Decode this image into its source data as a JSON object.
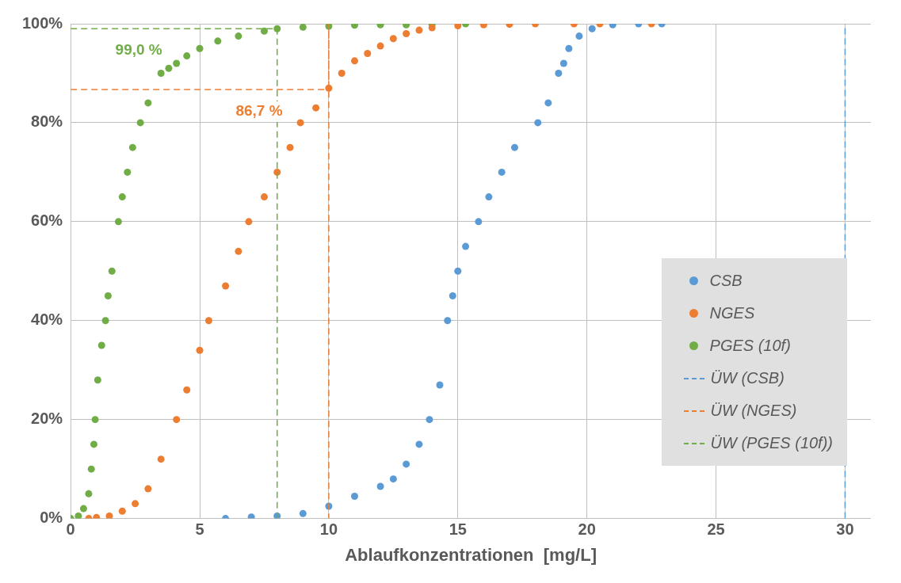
{
  "chart_data": {
    "type": "scatter",
    "xlabel": "Ablaufkonzentrationen  [mg/L]",
    "xlim": [
      0,
      31
    ],
    "ylim": [
      0,
      100
    ],
    "xticks": [
      0,
      5,
      10,
      15,
      20,
      25,
      30
    ],
    "yticks": [
      {
        "value": 0,
        "label": "0%"
      },
      {
        "value": 20,
        "label": "20%"
      },
      {
        "value": 40,
        "label": "40%"
      },
      {
        "value": 60,
        "label": "60%"
      },
      {
        "value": 80,
        "label": "80%"
      },
      {
        "value": 100,
        "label": "100%"
      }
    ],
    "grid": true,
    "legend": "right",
    "marker": "circle",
    "series": [
      {
        "name": "CSB",
        "color": "#5b9bd5",
        "x": [
          6,
          7,
          8,
          9,
          10,
          11,
          12,
          12.5,
          13,
          13.5,
          13.9,
          14.3,
          14.6,
          14.8,
          15,
          15.3,
          15.8,
          16.2,
          16.7,
          17.2,
          18.1,
          18.5,
          18.9,
          19.1,
          19.3,
          19.7,
          20.2,
          21,
          22,
          22.9
        ],
        "values": [
          0,
          0.3,
          0.5,
          1,
          2.5,
          4.5,
          6.5,
          8,
          11,
          15,
          20,
          27,
          40,
          45,
          50,
          55,
          60,
          65,
          70,
          75,
          80,
          84,
          90,
          92,
          95,
          97.5,
          99,
          99.8,
          100,
          100
        ]
      },
      {
        "name": "NGES",
        "color": "#ed7d31",
        "x": [
          0.7,
          1,
          1.5,
          2,
          2.5,
          3,
          3.5,
          4.1,
          4.5,
          5,
          5.35,
          6,
          6.5,
          6.9,
          7.5,
          8,
          8.5,
          8.9,
          9.5,
          10,
          10.5,
          11,
          11.5,
          12,
          12.5,
          13,
          13.5,
          14,
          15,
          16,
          17,
          18,
          19.5,
          20.5,
          22.5
        ],
        "values": [
          0,
          0.2,
          0.5,
          1.5,
          3,
          6,
          12,
          20,
          26,
          34,
          40,
          47,
          54,
          60,
          65,
          70,
          75,
          80,
          83,
          87,
          90,
          92.5,
          94,
          95.5,
          97,
          98,
          98.7,
          99.2,
          99.6,
          99.8,
          99.9,
          100,
          100,
          100,
          100
        ]
      },
      {
        "name": "PGES (10f)",
        "color": "#70ad47",
        "x": [
          0,
          0.3,
          0.5,
          0.7,
          0.8,
          0.9,
          0.95,
          1.05,
          1.2,
          1.35,
          1.45,
          1.6,
          1.85,
          2.0,
          2.2,
          2.4,
          2.7,
          3.0,
          3.5,
          3.8,
          4.1,
          4.5,
          5,
          5.7,
          6.5,
          7.5,
          8,
          9,
          10,
          11,
          12,
          13,
          14,
          15.3
        ],
        "values": [
          0,
          0.5,
          2,
          5,
          10,
          15,
          20,
          28,
          35,
          40,
          45,
          50,
          60,
          65,
          70,
          75,
          80,
          84,
          90,
          91,
          92,
          93.5,
          95,
          96.5,
          97.5,
          98.5,
          99,
          99.3,
          99.5,
          99.7,
          99.8,
          99.8,
          99.9,
          100
        ]
      },
      {
        "name": "ÜW (CSB)",
        "type": "line",
        "color": "#5b9bd5",
        "line_style": "dashed",
        "marker": "none",
        "x": [
          30,
          30
        ],
        "values": [
          0,
          100
        ]
      },
      {
        "name": "ÜW (NGES)",
        "type": "line",
        "color": "#ed7d31",
        "line_style": "dashed",
        "marker": "none",
        "x": [
          0,
          10,
          10,
          10
        ],
        "values": [
          86.7,
          86.7,
          100,
          0
        ]
      },
      {
        "name": "ÜW (PGES (10f))",
        "type": "line",
        "color": "#70ad47",
        "line_style": "dashed",
        "marker": "none",
        "x": [
          0,
          8,
          8
        ],
        "values": [
          99,
          99,
          0
        ]
      }
    ],
    "annotations": [
      "99,0 %",
      "86,7 %"
    ]
  }
}
